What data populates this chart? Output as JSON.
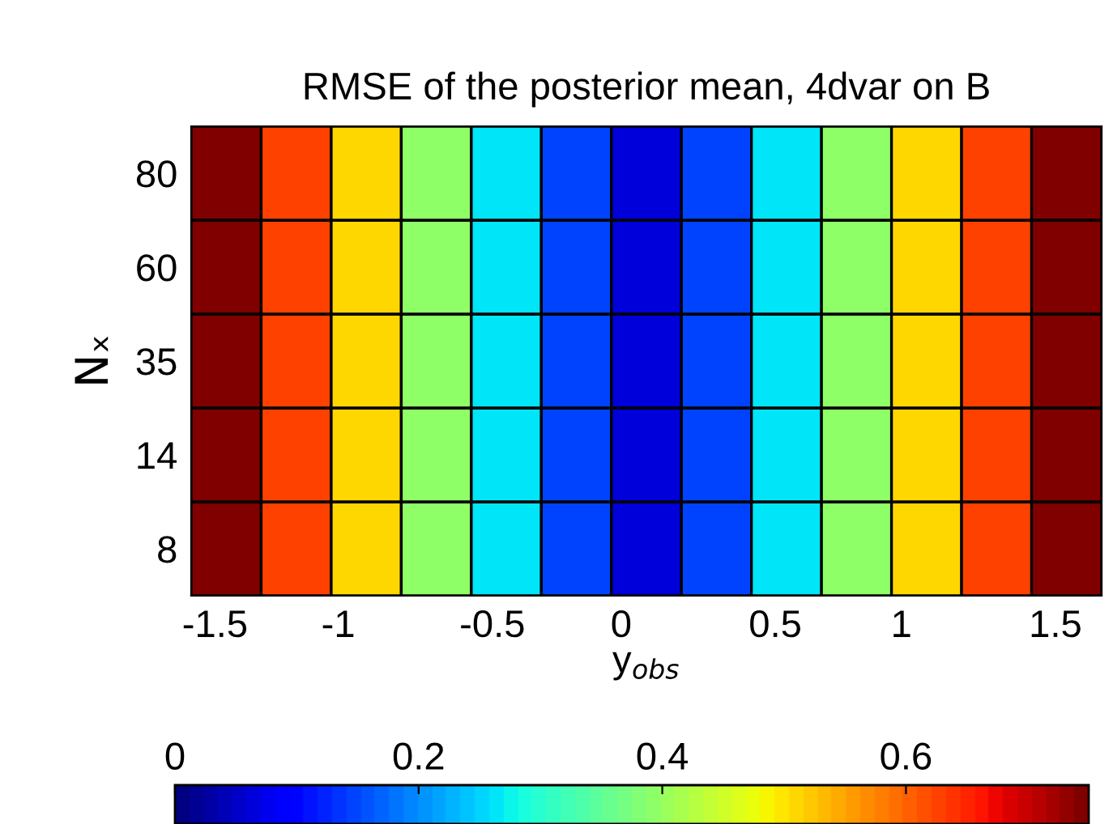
{
  "chart_data": {
    "type": "heatmap",
    "title": "RMSE of the posterior mean, 4dvar on B",
    "xlabel": "y$_{obs}$",
    "ylabel": "Nₓ",
    "x": [
      -1.5,
      -1.25,
      -1.0,
      -0.75,
      -0.5,
      -0.25,
      0,
      0.25,
      0.5,
      0.75,
      1.0,
      1.25,
      1.5
    ],
    "xlim": [
      -1.625,
      1.625
    ],
    "xticks": [
      {
        "value": -1.54,
        "label": "-1.5"
      },
      {
        "value": -1.1,
        "label": "-1"
      },
      {
        "value": -0.55,
        "label": "-0.5"
      },
      {
        "value": -0.09,
        "label": "0"
      },
      {
        "value": 0.46,
        "label": "0.5"
      },
      {
        "value": 0.91,
        "label": "1"
      },
      {
        "value": 1.46,
        "label": "1.5"
      }
    ],
    "y_categories": [
      "80",
      "60",
      "35",
      "14",
      "8"
    ],
    "cells": [
      [
        0.75,
        0.63,
        0.51,
        0.39,
        0.26,
        0.15,
        0.06,
        0.15,
        0.26,
        0.39,
        0.51,
        0.63,
        0.75
      ],
      [
        0.75,
        0.63,
        0.51,
        0.39,
        0.26,
        0.15,
        0.06,
        0.15,
        0.26,
        0.39,
        0.51,
        0.63,
        0.75
      ],
      [
        0.75,
        0.63,
        0.51,
        0.39,
        0.26,
        0.15,
        0.06,
        0.15,
        0.26,
        0.39,
        0.51,
        0.63,
        0.75
      ],
      [
        0.75,
        0.63,
        0.51,
        0.39,
        0.26,
        0.15,
        0.06,
        0.15,
        0.26,
        0.39,
        0.51,
        0.63,
        0.75
      ],
      [
        0.75,
        0.63,
        0.51,
        0.39,
        0.26,
        0.15,
        0.06,
        0.15,
        0.26,
        0.39,
        0.51,
        0.63,
        0.75
      ]
    ],
    "clim": [
      0,
      0.75
    ],
    "cticks": [
      0,
      0.2,
      0.4,
      0.6
    ],
    "grid": false
  }
}
